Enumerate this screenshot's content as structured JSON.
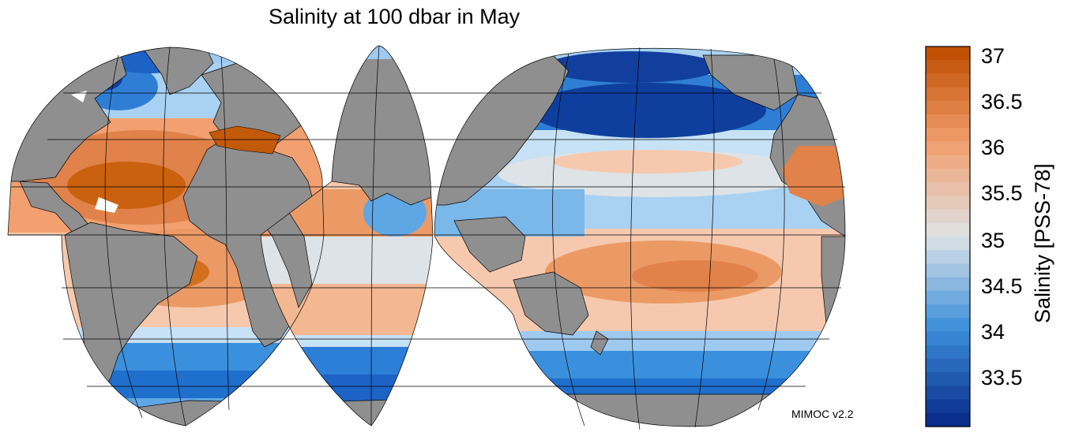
{
  "title": "Salinity at 100 dbar in May",
  "credit": "MIMOC v2.2",
  "colorbar": {
    "label": "Salinity [PSS-78]",
    "ticks": [
      "37",
      "36.5",
      "36",
      "35.5",
      "35",
      "34.5",
      "34",
      "33.5"
    ],
    "tick_values": [
      37,
      36.5,
      36,
      35.5,
      35,
      34.5,
      34,
      33.5
    ],
    "range": [
      33.0,
      37.2
    ],
    "colors": {
      "low": "#0a2f8c",
      "mid_low": "#3c8fdb",
      "mid": "#dde3e6",
      "mid_high": "#f2a070",
      "high": "#c25005"
    }
  },
  "map": {
    "projection": "interrupted goode homolosine",
    "land_color": "#8f8f8f",
    "coastline_color": "#000000",
    "graticule": true
  }
}
